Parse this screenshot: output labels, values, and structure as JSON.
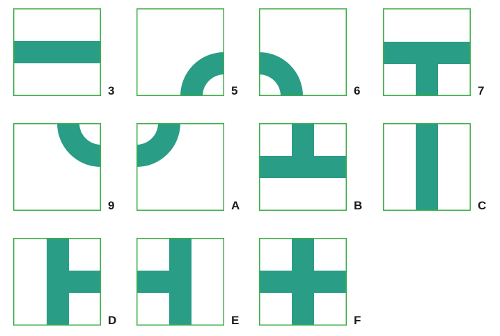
{
  "colors": {
    "frame": "#3fae49",
    "pipe": "#2a9d86",
    "background": "#ffffff"
  },
  "tiles": [
    {
      "label": "3",
      "shape": "straight-horizontal"
    },
    {
      "label": "5",
      "shape": "corner-right-bottom"
    },
    {
      "label": "6",
      "shape": "corner-left-bottom"
    },
    {
      "label": "7",
      "shape": "tee-left-right-bottom"
    },
    {
      "label": "9",
      "shape": "corner-top-right"
    },
    {
      "label": "A",
      "shape": "corner-top-left"
    },
    {
      "label": "B",
      "shape": "tee-top-left-right"
    },
    {
      "label": "C",
      "shape": "straight-vertical"
    },
    {
      "label": "D",
      "shape": "tee-top-bottom-right"
    },
    {
      "label": "E",
      "shape": "tee-top-bottom-left"
    },
    {
      "label": "F",
      "shape": "cross"
    }
  ]
}
